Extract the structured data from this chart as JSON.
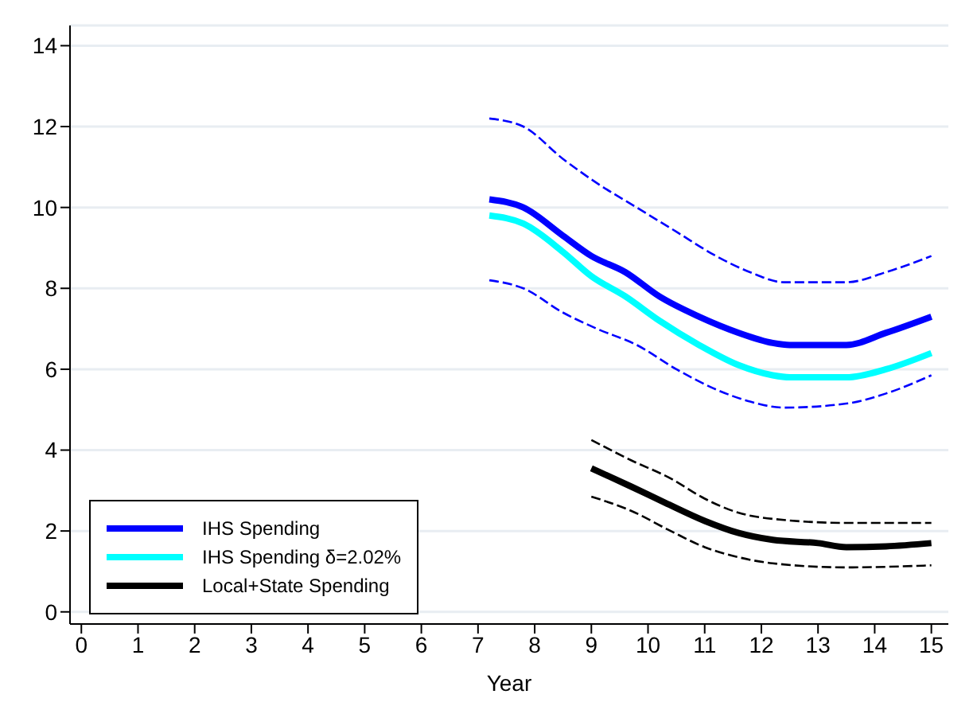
{
  "chart_data": {
    "type": "line",
    "xlabel": "Year",
    "xlim": [
      -0.2,
      15.3
    ],
    "xticks": [
      0,
      1,
      2,
      3,
      4,
      5,
      6,
      7,
      8,
      9,
      10,
      11,
      12,
      13,
      14,
      15
    ],
    "ylim": [
      -0.3,
      14.5
    ],
    "yticks": [
      0,
      2,
      4,
      6,
      8,
      10,
      12,
      14
    ],
    "grid": "y",
    "legend": "bottom left",
    "marker": "none",
    "series": [
      {
        "name": "IHS Spending",
        "color": "#0000ff",
        "line_style": "solid",
        "x": [
          7.2,
          7.8,
          8.5,
          9.0,
          9.6,
          10.2,
          10.9,
          11.6,
          12.2,
          12.5,
          13.5,
          14.2,
          15
        ],
        "values": [
          10.2,
          10.0,
          9.3,
          8.8,
          8.4,
          7.8,
          7.3,
          6.9,
          6.65,
          6.6,
          6.6,
          6.9,
          7.3
        ]
      },
      {
        "name": "IHS Spending δ=2.02%",
        "color": "#00ffff",
        "line_style": "solid",
        "x": [
          7.2,
          7.8,
          8.5,
          9.0,
          9.6,
          10.2,
          10.9,
          11.6,
          12.2,
          12.5,
          13.5,
          14.2,
          15
        ],
        "values": [
          9.8,
          9.6,
          8.9,
          8.3,
          7.8,
          7.2,
          6.6,
          6.1,
          5.85,
          5.8,
          5.8,
          6.0,
          6.4
        ]
      },
      {
        "color": "#0000ff",
        "line_style": "dashed",
        "x": [
          7.2,
          7.8,
          8.5,
          9.1,
          9.8,
          10.5,
          11.2,
          11.8,
          12.4,
          13.5,
          14.2,
          15
        ],
        "values": [
          12.2,
          12.0,
          11.2,
          10.6,
          10.0,
          9.4,
          8.8,
          8.4,
          8.15,
          8.15,
          8.4,
          8.8
        ]
      },
      {
        "color": "#0000ff",
        "line_style": "dashed",
        "x": [
          7.2,
          7.8,
          8.5,
          9.1,
          9.8,
          10.5,
          11.2,
          11.8,
          12.4,
          13.5,
          14.2,
          15
        ],
        "values": [
          8.2,
          8.0,
          7.4,
          7.0,
          6.6,
          6.0,
          5.5,
          5.2,
          5.05,
          5.15,
          5.4,
          5.85
        ]
      },
      {
        "name": "Local+State Spending",
        "color": "#000000",
        "line_style": "solid",
        "x": [
          9,
          9.7,
          10.3,
          11,
          11.6,
          12.2,
          13,
          13.5,
          14.2,
          15
        ],
        "values": [
          3.55,
          3.1,
          2.7,
          2.25,
          1.95,
          1.78,
          1.7,
          1.6,
          1.62,
          1.7
        ]
      },
      {
        "color": "#000000",
        "line_style": "dashed",
        "x": [
          9,
          9.7,
          10.4,
          11,
          11.6,
          12.2,
          13.5,
          15
        ],
        "values": [
          4.25,
          3.75,
          3.3,
          2.8,
          2.45,
          2.3,
          2.2,
          2.2
        ]
      },
      {
        "color": "#000000",
        "line_style": "dashed",
        "x": [
          9,
          9.7,
          10.4,
          11,
          11.6,
          12.2,
          13.5,
          15
        ],
        "values": [
          2.85,
          2.5,
          2.0,
          1.6,
          1.35,
          1.2,
          1.1,
          1.15
        ]
      }
    ]
  }
}
